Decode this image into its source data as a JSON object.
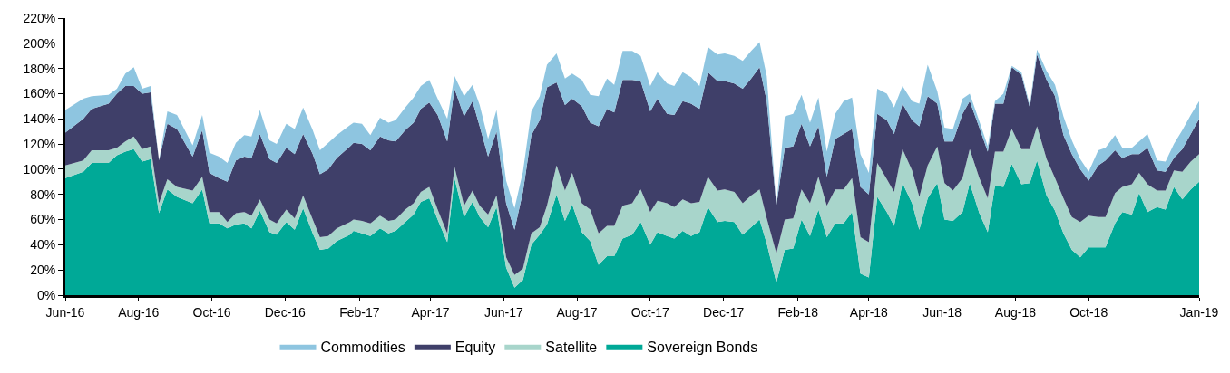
{
  "chart_data": {
    "type": "area",
    "stacked": true,
    "grid": false,
    "legend": "bottom",
    "x": [
      "2016-06-01",
      "2016-06-16",
      "2016-06-23",
      "2016-07-07",
      "2016-07-14",
      "2016-07-21",
      "2016-07-28",
      "2016-08-04",
      "2016-08-11",
      "2016-08-18",
      "2016-08-25",
      "2016-09-02",
      "2016-09-15",
      "2016-09-23",
      "2016-09-29",
      "2016-10-07",
      "2016-10-14",
      "2016-10-21",
      "2016-10-28",
      "2016-11-03",
      "2016-11-10",
      "2016-11-18",
      "2016-11-24",
      "2016-12-02",
      "2016-12-09",
      "2016-12-16",
      "2016-12-24",
      "2016-12-30",
      "2017-01-06",
      "2017-01-13",
      "2017-01-24",
      "2017-01-27",
      "2017-02-03",
      "2017-02-10",
      "2017-02-18",
      "2017-02-25",
      "2017-03-03",
      "2017-03-11",
      "2017-03-18",
      "2017-03-24",
      "2017-03-31",
      "2017-04-07",
      "2017-04-15",
      "2017-04-21",
      "2017-04-29",
      "2017-05-06",
      "2017-05-12",
      "2017-05-19",
      "2017-05-26",
      "2017-06-03",
      "2017-06-10",
      "2017-06-17",
      "2017-06-24",
      "2017-07-01",
      "2017-07-07",
      "2017-07-15",
      "2017-07-22",
      "2017-07-28",
      "2017-08-05",
      "2017-08-12",
      "2017-08-19",
      "2017-08-26",
      "2017-09-01",
      "2017-09-08",
      "2017-09-16",
      "2017-09-23",
      "2017-10-01",
      "2017-10-07",
      "2017-10-15",
      "2017-10-21",
      "2017-10-28",
      "2017-11-04",
      "2017-11-11",
      "2017-11-18",
      "2017-11-26",
      "2017-12-02",
      "2017-12-10",
      "2017-12-17",
      "2017-12-24",
      "2017-12-31",
      "2018-01-06",
      "2018-01-14",
      "2018-01-21",
      "2018-01-28",
      "2018-02-04",
      "2018-02-11",
      "2018-02-18",
      "2018-02-25",
      "2018-03-04",
      "2018-03-11",
      "2018-03-18",
      "2018-03-25",
      "2018-04-01",
      "2018-04-08",
      "2018-04-16",
      "2018-04-22",
      "2018-04-29",
      "2018-05-07",
      "2018-05-13",
      "2018-05-20",
      "2018-05-28",
      "2018-06-03",
      "2018-06-10",
      "2018-06-18",
      "2018-06-24",
      "2018-07-02",
      "2018-07-09",
      "2018-07-15",
      "2018-07-22",
      "2018-07-29",
      "2018-08-06",
      "2018-08-13",
      "2018-08-19",
      "2018-08-27",
      "2018-09-03",
      "2018-09-10",
      "2018-09-17",
      "2018-09-24",
      "2018-10-01",
      "2018-10-09",
      "2018-10-15",
      "2018-10-23",
      "2018-10-29",
      "2018-11-06",
      "2018-11-12",
      "2018-11-19",
      "2018-11-27",
      "2018-12-04",
      "2018-12-11",
      "2018-12-18",
      "2018-12-25",
      "2019-01-01"
    ],
    "series": [
      {
        "name": "Sovereign Bonds",
        "color": "#00a997",
        "values": [
          93,
          98,
          105,
          105,
          111,
          114,
          116,
          106,
          108,
          65,
          84,
          78,
          73,
          84,
          57,
          57,
          53,
          56,
          57,
          53,
          67,
          50,
          48,
          58,
          52,
          69,
          49,
          36,
          37,
          43,
          48,
          51,
          49,
          47,
          53,
          49,
          51,
          58,
          64,
          74,
          77,
          60,
          42,
          93,
          62,
          74,
          62,
          54,
          70,
          22,
          6,
          12,
          40,
          48,
          56,
          80,
          59,
          72,
          50,
          43,
          24,
          31,
          31,
          45,
          48,
          58,
          40,
          50,
          47,
          45,
          51,
          47,
          50,
          70,
          58,
          59,
          58,
          48,
          54,
          60,
          41,
          10,
          36,
          37,
          60,
          47,
          68,
          46,
          57,
          57,
          66,
          17,
          14,
          78,
          66,
          55,
          89,
          73,
          52,
          77,
          89,
          60,
          59,
          66,
          89,
          65,
          50,
          87,
          86,
          104,
          88,
          89,
          107,
          79,
          67,
          49,
          36,
          30,
          38,
          38,
          38,
          57,
          66,
          64,
          81,
          66,
          70,
          68,
          86,
          76,
          84,
          90
        ]
      },
      {
        "name": "Satellite",
        "color": "#a8d5cb",
        "values": [
          10,
          9,
          10,
          10,
          6,
          8,
          10,
          10,
          10,
          8,
          8,
          8,
          10,
          10,
          9,
          9,
          5,
          9,
          9,
          10,
          9,
          10,
          9,
          10,
          9,
          10,
          11,
          10,
          10,
          10,
          10,
          9,
          10,
          10,
          10,
          10,
          9,
          10,
          9,
          8,
          9,
          8,
          7,
          9,
          9,
          9,
          9,
          10,
          9,
          8,
          10,
          9,
          9,
          6,
          15,
          23,
          24,
          25,
          23,
          25,
          25,
          24,
          24,
          26,
          25,
          26,
          26,
          25,
          26,
          25,
          25,
          26,
          24,
          24,
          25,
          25,
          24,
          25,
          25,
          24,
          20,
          23,
          24,
          24,
          24,
          26,
          26,
          25,
          27,
          27,
          27,
          29,
          28,
          27,
          26,
          27,
          27,
          26,
          26,
          26,
          29,
          29,
          24,
          27,
          27,
          28,
          27,
          27,
          28,
          28,
          28,
          27,
          27,
          29,
          26,
          28,
          26,
          28,
          25,
          24,
          24,
          24,
          20,
          24,
          16,
          22,
          13,
          15,
          13,
          22,
          22,
          22
        ]
      },
      {
        "name": "Equity",
        "color": "#3f3f69",
        "values": [
          26,
          33,
          33,
          37,
          43,
          44,
          40,
          44,
          43,
          34,
          44,
          46,
          27,
          37,
          31,
          27,
          32,
          42,
          44,
          46,
          52,
          48,
          48,
          49,
          51,
          49,
          52,
          50,
          53,
          56,
          60,
          61,
          61,
          58,
          63,
          64,
          62,
          63,
          64,
          66,
          67,
          75,
          73,
          62,
          71,
          71,
          63,
          46,
          51,
          43,
          36,
          61,
          78,
          85,
          94,
          66,
          68,
          59,
          77,
          69,
          85,
          93,
          90,
          100,
          98,
          86,
          80,
          81,
          71,
          73,
          78,
          79,
          74,
          83,
          87,
          86,
          86,
          91,
          93,
          97,
          93,
          38,
          57,
          57,
          52,
          45,
          40,
          23,
          40,
          44,
          39,
          40,
          38,
          39,
          47,
          46,
          36,
          40,
          56,
          55,
          34,
          33,
          39,
          51,
          38,
          40,
          37,
          38,
          38,
          49,
          59,
          33,
          57,
          63,
          65,
          50,
          50,
          42,
          28,
          41,
          45,
          34,
          23,
          24,
          15,
          29,
          16,
          15,
          10,
          18,
          22,
          28
        ]
      },
      {
        "name": "Commodities",
        "color": "#8ec5e0",
        "values": [
          18,
          16,
          10,
          7,
          4,
          10,
          15,
          4,
          5,
          0,
          10,
          11,
          9,
          12,
          16,
          17,
          15,
          14,
          17,
          17,
          19,
          15,
          15,
          19,
          20,
          21,
          19,
          19,
          21,
          18,
          17,
          16,
          16,
          12,
          15,
          14,
          17,
          18,
          20,
          18,
          18,
          13,
          18,
          10,
          16,
          13,
          17,
          14,
          17,
          18,
          17,
          16,
          19,
          19,
          18,
          23,
          21,
          20,
          21,
          22,
          24,
          24,
          22,
          23,
          23,
          20,
          20,
          21,
          24,
          23,
          23,
          21,
          18,
          20,
          21,
          22,
          22,
          22,
          22,
          20,
          20,
          0,
          25,
          26,
          23,
          19,
          23,
          20,
          20,
          26,
          25,
          26,
          17,
          20,
          21,
          21,
          14,
          15,
          18,
          25,
          10,
          11,
          10,
          12,
          6,
          5,
          4,
          2,
          8,
          1,
          2,
          2,
          4,
          7,
          9,
          15,
          11,
          8,
          7,
          12,
          10,
          12,
          8,
          5,
          10,
          11,
          8,
          8,
          11,
          15,
          15,
          14
        ]
      }
    ],
    "ylim": [
      0,
      220
    ],
    "yticks": [
      {
        "value": 0,
        "label": "0%"
      },
      {
        "value": 20,
        "label": "20%"
      },
      {
        "value": 40,
        "label": "40%"
      },
      {
        "value": 60,
        "label": "60%"
      },
      {
        "value": 80,
        "label": "80%"
      },
      {
        "value": 100,
        "label": "100%"
      },
      {
        "value": 120,
        "label": "120%"
      },
      {
        "value": 140,
        "label": "140%"
      },
      {
        "value": 160,
        "label": "160%"
      },
      {
        "value": 180,
        "label": "180%"
      },
      {
        "value": 200,
        "label": "200%"
      },
      {
        "value": 220,
        "label": "220%"
      }
    ],
    "xlim": [
      "2016-06-01",
      "2019-01-01"
    ],
    "xticks": [
      {
        "value": "2016-06-01",
        "label": "Jun-16"
      },
      {
        "value": "2016-08-01",
        "label": "Aug-16"
      },
      {
        "value": "2016-10-01",
        "label": "Oct-16"
      },
      {
        "value": "2016-12-01",
        "label": "Dec-16"
      },
      {
        "value": "2017-02-01",
        "label": "Feb-17"
      },
      {
        "value": "2017-04-01",
        "label": "Apr-17"
      },
      {
        "value": "2017-06-01",
        "label": "Jun-17"
      },
      {
        "value": "2017-08-01",
        "label": "Aug-17"
      },
      {
        "value": "2017-10-01",
        "label": "Oct-17"
      },
      {
        "value": "2017-12-01",
        "label": "Dec-17"
      },
      {
        "value": "2018-02-01",
        "label": "Feb-18"
      },
      {
        "value": "2018-04-01",
        "label": "Apr-18"
      },
      {
        "value": "2018-06-01",
        "label": "Jun-18"
      },
      {
        "value": "2018-08-01",
        "label": "Aug-18"
      },
      {
        "value": "2018-10-01",
        "label": "Oct-18"
      },
      {
        "value": "2019-01-01",
        "label": "Jan-19"
      }
    ]
  }
}
